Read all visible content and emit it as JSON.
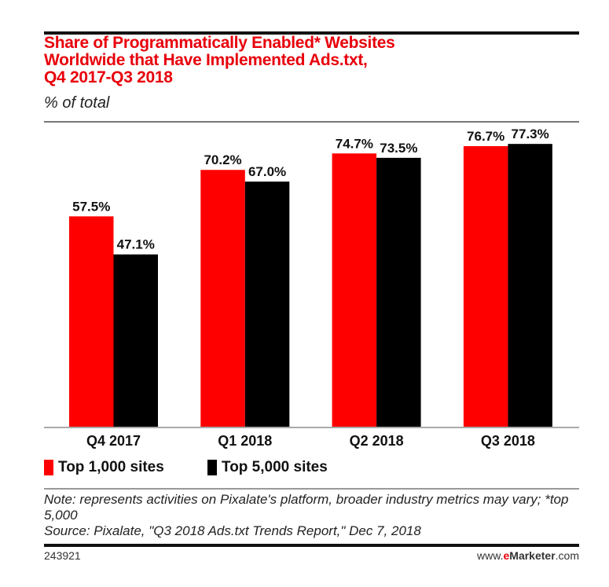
{
  "chart_data": {
    "type": "bar",
    "title": "Share of Programmatically Enabled* Websites Worldwide that Have Implemented Ads.txt, Q4 2017-Q3 2018",
    "title_lines": [
      "Share of Programmatically Enabled* Websites",
      "Worldwide that Have Implemented Ads.txt,",
      "Q4 2017-Q3 2018"
    ],
    "subtitle": "% of total",
    "categories": [
      "Q4 2017",
      "Q1 2018",
      "Q2 2018",
      "Q3 2018"
    ],
    "series": [
      {
        "name": "Top 1,000 sites",
        "color": "#ff0000",
        "values": [
          57.5,
          70.2,
          74.7,
          76.7
        ],
        "labels": [
          "57.5%",
          "70.2%",
          "74.7%",
          "76.7%"
        ]
      },
      {
        "name": "Top 5,000 sites",
        "color": "#000000",
        "values": [
          47.1,
          67.0,
          73.5,
          77.3
        ],
        "labels": [
          "47.1%",
          "67.0%",
          "73.5%",
          "77.3%"
        ]
      }
    ],
    "ylim": [
      0,
      83
    ],
    "grid": false,
    "legend_position": "bottom-left"
  },
  "notes": {
    "note": "Note: represents activities on Pixalate's platform, broader industry metrics may vary; *top 5,000",
    "source": "Source: Pixalate, \"Q3 2018 Ads.txt Trends Report,\" Dec 7, 2018"
  },
  "footer": {
    "id": "243921",
    "brand_pre": "www.",
    "brand_e": "e",
    "brand_main": "Marketer",
    "brand_post": ".com"
  }
}
